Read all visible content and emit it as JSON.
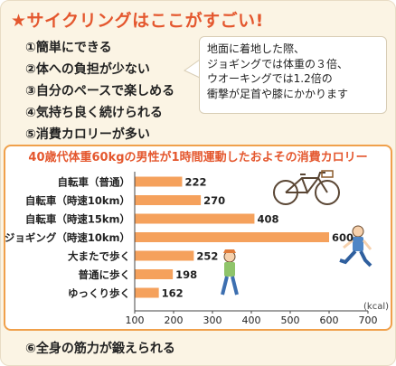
{
  "title": "★サイクリングはここがすごい!",
  "points": [
    "①簡単にできる",
    "②体への負担が少ない",
    "③自分のペースで楽しめる",
    "④気持ち良く続けられる",
    "⑤消費カロリーが多い"
  ],
  "note": [
    "地面に着地した際、",
    "ジョギングでは体重の３倍、",
    "ウオーキングでは1.2倍の",
    "衝撃が足首や膝にかかります"
  ],
  "footer": "⑥全身の筋力が鍛えられる",
  "colors": {
    "title": "#e4572e",
    "bar": "#f5a15c",
    "chart_border": "#f0a04b"
  },
  "icons": [
    "bicycle-illustration",
    "jogger-illustration",
    "walker-illustration"
  ],
  "chart_data": {
    "type": "bar",
    "orientation": "horizontal",
    "title": "40歳代体重60kgの男性が1時間運動したおよその消費カロリー",
    "categories": [
      "自転車（普通）",
      "自転車（時速10km）",
      "自転車（時速15km）",
      "ジョギング（時速10km）",
      "大またで歩く",
      "普通に歩く",
      "ゆっくり歩く"
    ],
    "values": [
      222,
      270,
      408,
      600,
      252,
      198,
      162
    ],
    "xlim": [
      100,
      700
    ],
    "xticks": [
      "100",
      "200",
      "300",
      "400",
      "500",
      "600",
      "700"
    ],
    "unit": "(kcal)",
    "grid": false,
    "legend": "none"
  }
}
